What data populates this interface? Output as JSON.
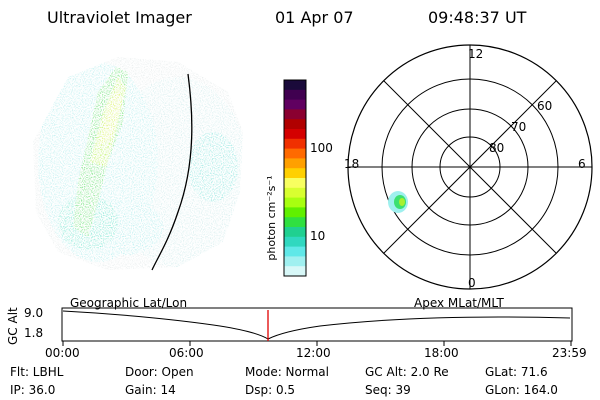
{
  "header": {
    "title": "Ultraviolet Imager",
    "date": "01 Apr 07",
    "time": "09:48:37 UT"
  },
  "colorbar": {
    "label": "photon cm⁻²s⁻¹",
    "ticks": [
      "100",
      "10"
    ],
    "colors": [
      "#1a0a3a",
      "#400050",
      "#600060",
      "#8a0030",
      "#b00000",
      "#d40000",
      "#f03000",
      "#ff6a00",
      "#ffa000",
      "#ffd000",
      "#f8ff60",
      "#d8ff30",
      "#a8ff10",
      "#60f000",
      "#30e040",
      "#20d090",
      "#30d8c0",
      "#60e8e8",
      "#a0f0f0",
      "#d8f8f8"
    ]
  },
  "polar": {
    "mlt_labels": {
      "top": "12",
      "left": "18",
      "right": "6",
      "bottom": "0"
    },
    "lat_labels": [
      "60",
      "70",
      "80"
    ]
  },
  "timeline": {
    "left_caption": "Geographic Lat/Lon",
    "right_caption": "Apex  MLat/MLT",
    "axis_title": "GC Alt",
    "y_ticks": [
      "9.0",
      "1.8"
    ],
    "x_ticks": [
      "00:00",
      "06:00",
      "12:00",
      "18:00",
      "23:59"
    ]
  },
  "info": {
    "filter": "Flt: LBHL",
    "door": "Door: Open",
    "mode": "Mode: Normal",
    "gc_alt": "GC Alt: 2.0 Re",
    "glat": "GLat:  71.6",
    "ip": "IP: 36.0",
    "gain": "Gain: 14",
    "dsp": "Dsp:    0.5",
    "seq": "Seq: 39",
    "glon": "GLon: 164.0"
  }
}
